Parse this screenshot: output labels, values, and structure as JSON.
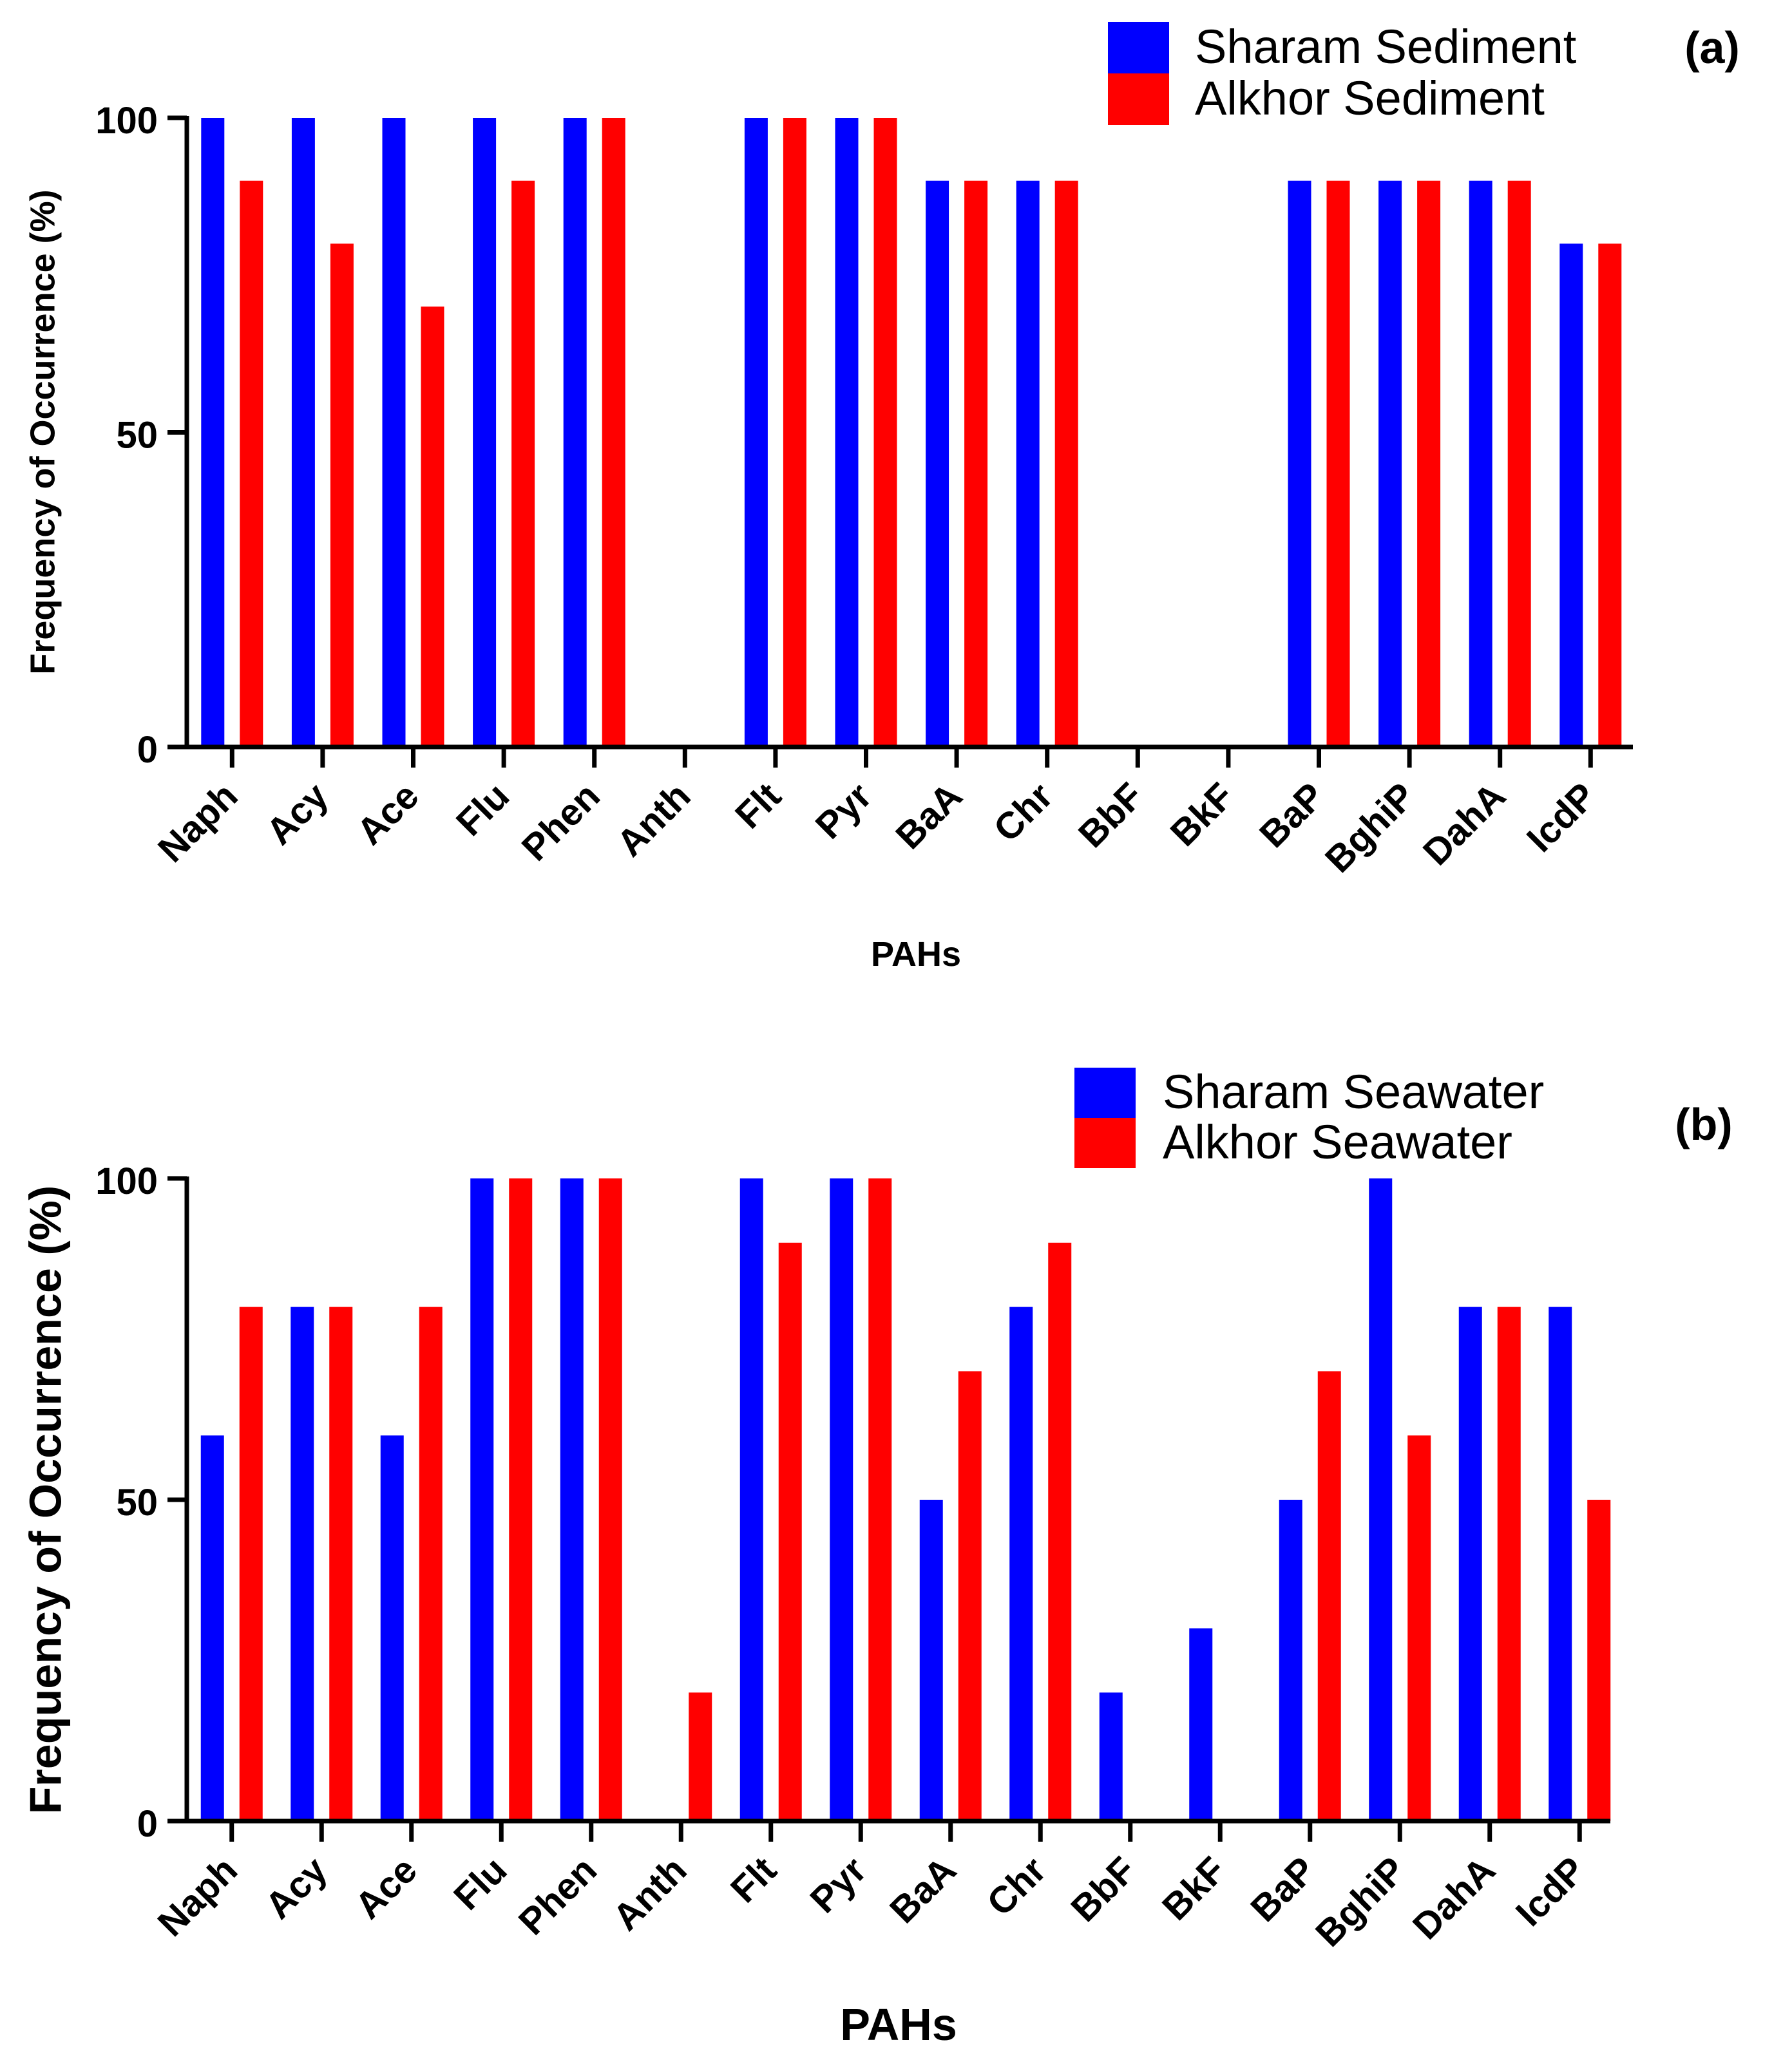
{
  "colors": {
    "blue": "#0000ff",
    "red": "#ff0000",
    "axis": "#000000"
  },
  "chart_data": [
    {
      "type": "bar",
      "panel_label": "(a)",
      "title": "",
      "xlabel": "PAHs",
      "ylabel": "Frequency of Occurrence (%)",
      "ylim": [
        0,
        100
      ],
      "yticks": [
        0,
        50,
        100
      ],
      "legend_position": "top-right",
      "categories": [
        "Naph",
        "Acy",
        "Ace",
        "Flu",
        "Phen",
        "Anth",
        "Flt",
        "Pyr",
        "BaA",
        "Chr",
        "BbF",
        "BkF",
        "BaP",
        "BghiP",
        "DahA",
        "IcdP"
      ],
      "series": [
        {
          "name": "Sharam Sediment",
          "color": "#0000ff",
          "values": [
            100,
            100,
            100,
            100,
            100,
            0,
            100,
            100,
            90,
            90,
            0,
            0,
            90,
            90,
            90,
            80
          ]
        },
        {
          "name": "Alkhor Sediment",
          "color": "#ff0000",
          "values": [
            90,
            80,
            70,
            90,
            100,
            0,
            100,
            100,
            90,
            90,
            0,
            0,
            90,
            90,
            90,
            80
          ]
        }
      ]
    },
    {
      "type": "bar",
      "panel_label": "(b)",
      "title": "",
      "xlabel": "PAHs",
      "ylabel": "Frequency of Occurrence (%)",
      "ylim": [
        0,
        100
      ],
      "yticks": [
        0,
        50,
        100
      ],
      "legend_position": "top-right",
      "categories": [
        "Naph",
        "Acy",
        "Ace",
        "Flu",
        "Phen",
        "Anth",
        "Flt",
        "Pyr",
        "BaA",
        "Chr",
        "BbF",
        "BkF",
        "BaP",
        "BghiP",
        "DahA",
        "IcdP"
      ],
      "series": [
        {
          "name": "Sharam Seawater",
          "color": "#0000ff",
          "values": [
            60,
            80,
            60,
            100,
            100,
            0,
            100,
            100,
            50,
            80,
            20,
            30,
            50,
            100,
            80,
            80
          ]
        },
        {
          "name": "Alkhor Seawater",
          "color": "#ff0000",
          "values": [
            80,
            80,
            80,
            100,
            100,
            20,
            90,
            100,
            70,
            90,
            0,
            0,
            70,
            60,
            80,
            50
          ]
        }
      ]
    }
  ]
}
